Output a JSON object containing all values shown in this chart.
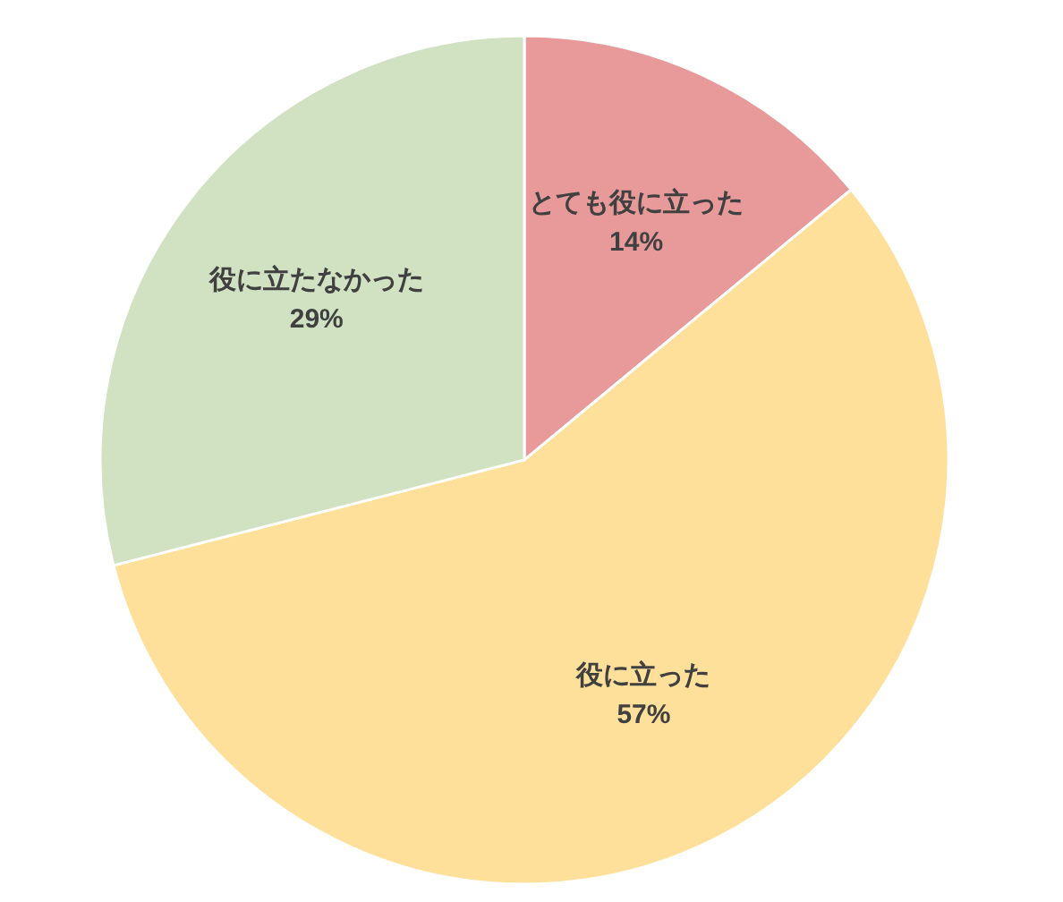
{
  "chart_data": {
    "type": "pie",
    "categories": [
      "とても役に立った",
      "役に立った",
      "役に立たなかった"
    ],
    "values": [
      14,
      57,
      29
    ],
    "colors": [
      "#e89a9a",
      "#fee09a",
      "#d0e2c2"
    ],
    "value_labels": [
      "14%",
      "57%",
      "29%"
    ]
  }
}
